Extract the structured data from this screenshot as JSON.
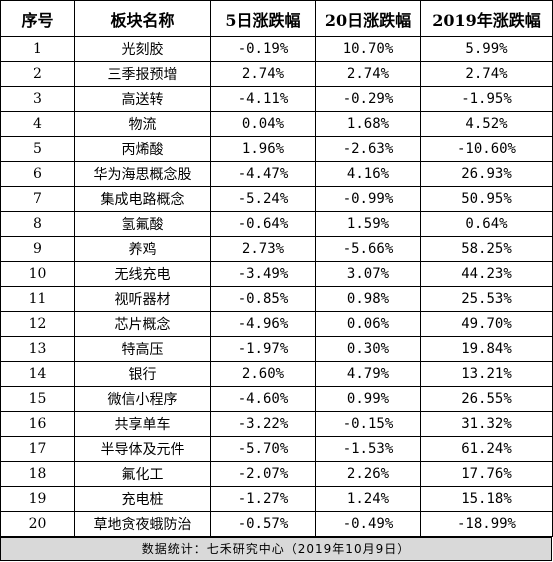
{
  "table": {
    "headers": [
      "序号",
      "板块名称",
      "5日涨跌幅",
      "20日涨跌幅",
      "2019年涨跌幅"
    ],
    "rows": [
      [
        "1",
        "光刻胶",
        "-0.19%",
        "10.70%",
        "5.99%"
      ],
      [
        "2",
        "三季报预增",
        "2.74%",
        "2.74%",
        "2.74%"
      ],
      [
        "3",
        "高送转",
        "-4.11%",
        "-0.29%",
        "-1.95%"
      ],
      [
        "4",
        "物流",
        "0.04%",
        "1.68%",
        "4.52%"
      ],
      [
        "5",
        "丙烯酸",
        "1.96%",
        "-2.63%",
        "-10.60%"
      ],
      [
        "6",
        "华为海思概念股",
        "-4.47%",
        "4.16%",
        "26.93%"
      ],
      [
        "7",
        "集成电路概念",
        "-5.24%",
        "-0.99%",
        "50.95%"
      ],
      [
        "8",
        "氢氟酸",
        "-0.64%",
        "1.59%",
        "0.64%"
      ],
      [
        "9",
        "养鸡",
        "2.73%",
        "-5.66%",
        "58.25%"
      ],
      [
        "10",
        "无线充电",
        "-3.49%",
        "3.07%",
        "44.23%"
      ],
      [
        "11",
        "视听器材",
        "-0.85%",
        "0.98%",
        "25.53%"
      ],
      [
        "12",
        "芯片概念",
        "-4.96%",
        "0.06%",
        "49.70%"
      ],
      [
        "13",
        "特高压",
        "-1.97%",
        "0.30%",
        "19.84%"
      ],
      [
        "14",
        "银行",
        "2.60%",
        "4.79%",
        "13.21%"
      ],
      [
        "15",
        "微信小程序",
        "-4.60%",
        "0.99%",
        "26.55%"
      ],
      [
        "16",
        "共享单车",
        "-3.22%",
        "-0.15%",
        "31.32%"
      ],
      [
        "17",
        "半导体及元件",
        "-5.70%",
        "-1.53%",
        "61.24%"
      ],
      [
        "18",
        "氟化工",
        "-2.07%",
        "2.26%",
        "17.76%"
      ],
      [
        "19",
        "充电桩",
        "-1.27%",
        "1.24%",
        "15.18%"
      ],
      [
        "20",
        "草地贪夜蛾防治",
        "-0.57%",
        "-0.49%",
        "-18.99%"
      ]
    ]
  },
  "footer": {
    "text": "数据统计：七禾研究中心（2019年10月9日）"
  },
  "colors": {
    "border": "#000000",
    "footer_bg": "#d9d9d9",
    "background": "#ffffff"
  }
}
